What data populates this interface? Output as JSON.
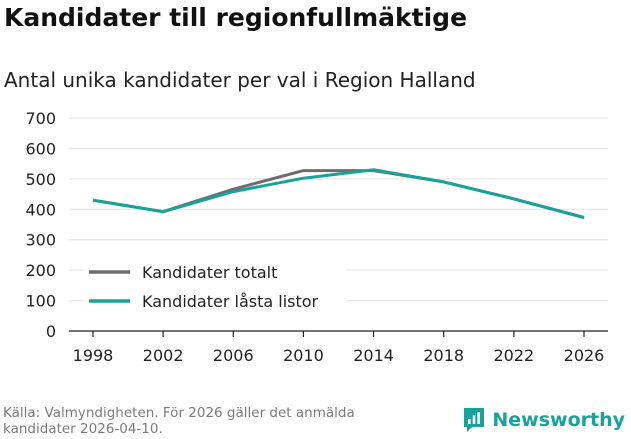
{
  "header": {
    "title": "Kandidater till regionfullmäktige",
    "subtitle": "Antal unika kandidater per val i Region Halland"
  },
  "footer": {
    "source": "Källa: Valmyndigheten. För 2026 gäller det anmälda kandidater 2026-04-10.",
    "brand": "Newsworthy",
    "brand_color": "#16a39a"
  },
  "chart_data": {
    "type": "line",
    "title": "Kandidater till regionfullmäktige",
    "subtitle": "Antal unika kandidater per val i Region Halland",
    "xlabel": "",
    "ylabel": "",
    "x": [
      "1998",
      "2002",
      "2006",
      "2010",
      "2014",
      "2018",
      "2022",
      "2026"
    ],
    "ylim": [
      0,
      700
    ],
    "yticks": [
      0,
      100,
      200,
      300,
      400,
      500,
      600,
      700
    ],
    "grid": true,
    "legend": "bottom-left",
    "series": [
      {
        "name": "Kandidater totalt",
        "color": "#6d6d6d",
        "values": [
          430,
          392,
          466,
          527,
          527,
          490,
          434,
          373
        ]
      },
      {
        "name": "Kandidater låsta listor",
        "color": "#16a39a",
        "values": [
          430,
          392,
          458,
          502,
          530,
          490,
          434,
          373
        ]
      }
    ]
  }
}
